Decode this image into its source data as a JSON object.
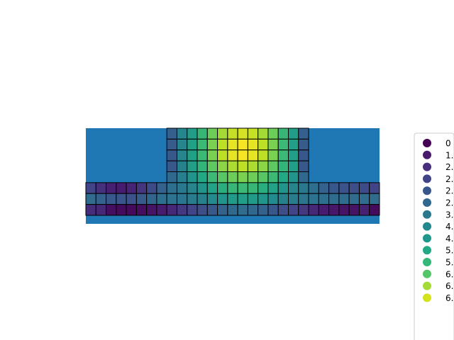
{
  "chart_data": {
    "type": "heatmap",
    "title": "",
    "xlabel": "",
    "ylabel": "",
    "background_color": "#1f77b4",
    "cell_edge_color": "#000000",
    "colormap": "viridis",
    "value_range": [
      0,
      8
    ],
    "grid_columns": 29,
    "grid_rows": 8,
    "cells": [
      {
        "row": 0,
        "col": 8,
        "v": 2.4
      },
      {
        "row": 0,
        "col": 9,
        "v": 3.6
      },
      {
        "row": 0,
        "col": 10,
        "v": 4.4
      },
      {
        "row": 0,
        "col": 11,
        "v": 5.3
      },
      {
        "row": 0,
        "col": 12,
        "v": 6.2
      },
      {
        "row": 0,
        "col": 13,
        "v": 6.9
      },
      {
        "row": 0,
        "col": 14,
        "v": 7.3
      },
      {
        "row": 0,
        "col": 15,
        "v": 7.5
      },
      {
        "row": 0,
        "col": 16,
        "v": 7.3
      },
      {
        "row": 0,
        "col": 17,
        "v": 6.9
      },
      {
        "row": 0,
        "col": 18,
        "v": 6.2
      },
      {
        "row": 0,
        "col": 19,
        "v": 5.3
      },
      {
        "row": 0,
        "col": 20,
        "v": 4.4
      },
      {
        "row": 0,
        "col": 21,
        "v": 2.4
      },
      {
        "row": 1,
        "col": 8,
        "v": 2.3
      },
      {
        "row": 1,
        "col": 9,
        "v": 3.6
      },
      {
        "row": 1,
        "col": 10,
        "v": 4.5
      },
      {
        "row": 1,
        "col": 11,
        "v": 5.4
      },
      {
        "row": 1,
        "col": 12,
        "v": 6.4
      },
      {
        "row": 1,
        "col": 13,
        "v": 7.2
      },
      {
        "row": 1,
        "col": 14,
        "v": 7.7
      },
      {
        "row": 1,
        "col": 15,
        "v": 7.9
      },
      {
        "row": 1,
        "col": 16,
        "v": 7.7
      },
      {
        "row": 1,
        "col": 17,
        "v": 7.2
      },
      {
        "row": 1,
        "col": 18,
        "v": 6.4
      },
      {
        "row": 1,
        "col": 19,
        "v": 5.4
      },
      {
        "row": 1,
        "col": 20,
        "v": 4.5
      },
      {
        "row": 1,
        "col": 21,
        "v": 2.3
      },
      {
        "row": 2,
        "col": 8,
        "v": 2.2
      },
      {
        "row": 2,
        "col": 9,
        "v": 3.6
      },
      {
        "row": 2,
        "col": 10,
        "v": 4.5
      },
      {
        "row": 2,
        "col": 11,
        "v": 5.4
      },
      {
        "row": 2,
        "col": 12,
        "v": 6.4
      },
      {
        "row": 2,
        "col": 13,
        "v": 7.2
      },
      {
        "row": 2,
        "col": 14,
        "v": 7.7
      },
      {
        "row": 2,
        "col": 15,
        "v": 7.9
      },
      {
        "row": 2,
        "col": 16,
        "v": 7.7
      },
      {
        "row": 2,
        "col": 17,
        "v": 7.2
      },
      {
        "row": 2,
        "col": 18,
        "v": 6.4
      },
      {
        "row": 2,
        "col": 19,
        "v": 5.4
      },
      {
        "row": 2,
        "col": 20,
        "v": 4.5
      },
      {
        "row": 2,
        "col": 21,
        "v": 2.2
      },
      {
        "row": 3,
        "col": 8,
        "v": 2.2
      },
      {
        "row": 3,
        "col": 9,
        "v": 3.5
      },
      {
        "row": 3,
        "col": 10,
        "v": 4.4
      },
      {
        "row": 3,
        "col": 11,
        "v": 5.2
      },
      {
        "row": 3,
        "col": 12,
        "v": 6.0
      },
      {
        "row": 3,
        "col": 13,
        "v": 6.6
      },
      {
        "row": 3,
        "col": 14,
        "v": 7.0
      },
      {
        "row": 3,
        "col": 15,
        "v": 7.2
      },
      {
        "row": 3,
        "col": 16,
        "v": 7.0
      },
      {
        "row": 3,
        "col": 17,
        "v": 6.6
      },
      {
        "row": 3,
        "col": 18,
        "v": 6.0
      },
      {
        "row": 3,
        "col": 19,
        "v": 5.2
      },
      {
        "row": 3,
        "col": 20,
        "v": 4.4
      },
      {
        "row": 3,
        "col": 21,
        "v": 2.2
      },
      {
        "row": 4,
        "col": 8,
        "v": 2.7
      },
      {
        "row": 4,
        "col": 9,
        "v": 3.4
      },
      {
        "row": 4,
        "col": 10,
        "v": 4.1
      },
      {
        "row": 4,
        "col": 11,
        "v": 4.8
      },
      {
        "row": 4,
        "col": 12,
        "v": 5.4
      },
      {
        "row": 4,
        "col": 13,
        "v": 5.9
      },
      {
        "row": 4,
        "col": 14,
        "v": 6.2
      },
      {
        "row": 4,
        "col": 15,
        "v": 6.4
      },
      {
        "row": 4,
        "col": 16,
        "v": 6.2
      },
      {
        "row": 4,
        "col": 17,
        "v": 5.9
      },
      {
        "row": 4,
        "col": 18,
        "v": 5.4
      },
      {
        "row": 4,
        "col": 19,
        "v": 4.8
      },
      {
        "row": 4,
        "col": 20,
        "v": 4.1
      },
      {
        "row": 4,
        "col": 21,
        "v": 2.7
      },
      {
        "row": 5,
        "col": 0,
        "v": 1.6
      },
      {
        "row": 5,
        "col": 1,
        "v": 1.1
      },
      {
        "row": 5,
        "col": 2,
        "v": 0.7
      },
      {
        "row": 5,
        "col": 3,
        "v": 0.6
      },
      {
        "row": 5,
        "col": 4,
        "v": 0.8
      },
      {
        "row": 5,
        "col": 5,
        "v": 1.2
      },
      {
        "row": 5,
        "col": 6,
        "v": 1.8
      },
      {
        "row": 5,
        "col": 7,
        "v": 2.5
      },
      {
        "row": 5,
        "col": 8,
        "v": 2.9
      },
      {
        "row": 5,
        "col": 9,
        "v": 3.2
      },
      {
        "row": 5,
        "col": 10,
        "v": 3.6
      },
      {
        "row": 5,
        "col": 11,
        "v": 4.1
      },
      {
        "row": 5,
        "col": 12,
        "v": 4.6
      },
      {
        "row": 5,
        "col": 13,
        "v": 5.0
      },
      {
        "row": 5,
        "col": 14,
        "v": 5.3
      },
      {
        "row": 5,
        "col": 15,
        "v": 5.4
      },
      {
        "row": 5,
        "col": 16,
        "v": 5.3
      },
      {
        "row": 5,
        "col": 17,
        "v": 5.0
      },
      {
        "row": 5,
        "col": 18,
        "v": 4.6
      },
      {
        "row": 5,
        "col": 19,
        "v": 4.1
      },
      {
        "row": 5,
        "col": 20,
        "v": 3.6
      },
      {
        "row": 5,
        "col": 21,
        "v": 3.2
      },
      {
        "row": 5,
        "col": 22,
        "v": 2.9
      },
      {
        "row": 5,
        "col": 23,
        "v": 2.5
      },
      {
        "row": 5,
        "col": 24,
        "v": 2.2
      },
      {
        "row": 5,
        "col": 25,
        "v": 2.0
      },
      {
        "row": 5,
        "col": 26,
        "v": 1.9
      },
      {
        "row": 5,
        "col": 27,
        "v": 1.8
      },
      {
        "row": 5,
        "col": 28,
        "v": 1.6
      },
      {
        "row": 6,
        "col": 0,
        "v": 2.8
      },
      {
        "row": 6,
        "col": 1,
        "v": 2.5
      },
      {
        "row": 6,
        "col": 2,
        "v": 2.2
      },
      {
        "row": 6,
        "col": 3,
        "v": 2.1
      },
      {
        "row": 6,
        "col": 4,
        "v": 2.0
      },
      {
        "row": 6,
        "col": 5,
        "v": 2.3
      },
      {
        "row": 6,
        "col": 6,
        "v": 2.6
      },
      {
        "row": 6,
        "col": 7,
        "v": 2.9
      },
      {
        "row": 6,
        "col": 8,
        "v": 3.0
      },
      {
        "row": 6,
        "col": 9,
        "v": 3.1
      },
      {
        "row": 6,
        "col": 10,
        "v": 3.3
      },
      {
        "row": 6,
        "col": 11,
        "v": 3.5
      },
      {
        "row": 6,
        "col": 12,
        "v": 3.8
      },
      {
        "row": 6,
        "col": 13,
        "v": 4.1
      },
      {
        "row": 6,
        "col": 14,
        "v": 4.3
      },
      {
        "row": 6,
        "col": 15,
        "v": 4.4
      },
      {
        "row": 6,
        "col": 16,
        "v": 4.3
      },
      {
        "row": 6,
        "col": 17,
        "v": 4.1
      },
      {
        "row": 6,
        "col": 18,
        "v": 3.8
      },
      {
        "row": 6,
        "col": 19,
        "v": 3.5
      },
      {
        "row": 6,
        "col": 20,
        "v": 3.3
      },
      {
        "row": 6,
        "col": 21,
        "v": 3.1
      },
      {
        "row": 6,
        "col": 22,
        "v": 3.0
      },
      {
        "row": 6,
        "col": 23,
        "v": 2.9
      },
      {
        "row": 6,
        "col": 24,
        "v": 2.8
      },
      {
        "row": 6,
        "col": 25,
        "v": 2.8
      },
      {
        "row": 6,
        "col": 26,
        "v": 2.8
      },
      {
        "row": 6,
        "col": 27,
        "v": 2.8
      },
      {
        "row": 6,
        "col": 28,
        "v": 2.8
      },
      {
        "row": 7,
        "col": 0,
        "v": 1.0
      },
      {
        "row": 7,
        "col": 1,
        "v": 0.9
      },
      {
        "row": 7,
        "col": 2,
        "v": 0.3
      },
      {
        "row": 7,
        "col": 3,
        "v": 0.2
      },
      {
        "row": 7,
        "col": 4,
        "v": 0.2
      },
      {
        "row": 7,
        "col": 5,
        "v": 0.3
      },
      {
        "row": 7,
        "col": 6,
        "v": 0.4
      },
      {
        "row": 7,
        "col": 7,
        "v": 0.6
      },
      {
        "row": 7,
        "col": 8,
        "v": 0.9
      },
      {
        "row": 7,
        "col": 9,
        "v": 1.3
      },
      {
        "row": 7,
        "col": 10,
        "v": 1.6
      },
      {
        "row": 7,
        "col": 11,
        "v": 1.9
      },
      {
        "row": 7,
        "col": 12,
        "v": 2.2
      },
      {
        "row": 7,
        "col": 13,
        "v": 2.5
      },
      {
        "row": 7,
        "col": 14,
        "v": 2.7
      },
      {
        "row": 7,
        "col": 15,
        "v": 2.8
      },
      {
        "row": 7,
        "col": 16,
        "v": 2.7
      },
      {
        "row": 7,
        "col": 17,
        "v": 2.5
      },
      {
        "row": 7,
        "col": 18,
        "v": 2.2
      },
      {
        "row": 7,
        "col": 19,
        "v": 1.9
      },
      {
        "row": 7,
        "col": 20,
        "v": 1.6
      },
      {
        "row": 7,
        "col": 21,
        "v": 1.3
      },
      {
        "row": 7,
        "col": 22,
        "v": 0.9
      },
      {
        "row": 7,
        "col": 23,
        "v": 0.6
      },
      {
        "row": 7,
        "col": 24,
        "v": 0.5
      },
      {
        "row": 7,
        "col": 25,
        "v": 0.4
      },
      {
        "row": 7,
        "col": 26,
        "v": 0.4
      },
      {
        "row": 7,
        "col": 27,
        "v": 0.7
      },
      {
        "row": 7,
        "col": 28,
        "v": 0.2
      }
    ],
    "legend": {
      "placement": "right",
      "entries": [
        {
          "label": "0",
          "color": "#440154"
        },
        {
          "label": "1.",
          "color": "#481a6c"
        },
        {
          "label": "2.",
          "color": "#472f7d"
        },
        {
          "label": "2.",
          "color": "#414487"
        },
        {
          "label": "2.",
          "color": "#39568c"
        },
        {
          "label": "2.",
          "color": "#31688e"
        },
        {
          "label": "3.",
          "color": "#2a788e"
        },
        {
          "label": "4.",
          "color": "#23888e"
        },
        {
          "label": "4.",
          "color": "#1f988b"
        },
        {
          "label": "5.",
          "color": "#22a884"
        },
        {
          "label": "5.",
          "color": "#35b779"
        },
        {
          "label": "6.",
          "color": "#54c568"
        },
        {
          "label": "6.",
          "color": "#a5db36"
        },
        {
          "label": "6.",
          "color": "#d2e21b"
        }
      ]
    }
  }
}
